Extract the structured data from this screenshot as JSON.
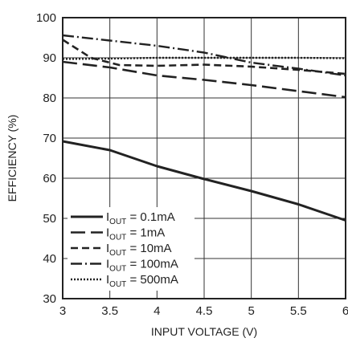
{
  "chart_data": {
    "type": "line",
    "xlabel": "INPUT VOLTAGE (V)",
    "ylabel": "EFFICIENCY (%)",
    "xlim": [
      3,
      6
    ],
    "ylim": [
      30,
      100
    ],
    "xticks": [
      "3",
      "3.5",
      "4",
      "4.5",
      "5",
      "5.5",
      "6"
    ],
    "yticks": [
      "30",
      "40",
      "50",
      "60",
      "70",
      "80",
      "90",
      "100"
    ],
    "grid": true,
    "legend_placement": "bottom-left",
    "series": [
      {
        "label_main": "I",
        "label_sub": "OUT",
        "label_rest": " = 0.1mA",
        "style": "solid",
        "x": [
          3,
          3.5,
          4,
          4.5,
          5,
          5.5,
          6
        ],
        "y": [
          69.2,
          67,
          63,
          59.8,
          56.8,
          53.5,
          49.5
        ]
      },
      {
        "label_main": "I",
        "label_sub": "OUT",
        "label_rest": " = 1mA",
        "style": "long-dash",
        "x": [
          3,
          3.5,
          4,
          4.5,
          5,
          5.5,
          6
        ],
        "y": [
          89,
          87.6,
          85.6,
          84.5,
          83.2,
          81.7,
          80.2
        ]
      },
      {
        "label_main": "I",
        "label_sub": "OUT",
        "label_rest": " = 10mA",
        "style": "dash",
        "x": [
          3,
          3.3,
          3.6,
          4,
          4.5,
          5,
          5.5,
          6
        ],
        "y": [
          94.5,
          90,
          88.2,
          88,
          88.3,
          87.8,
          87,
          86
        ]
      },
      {
        "label_main": "I",
        "label_sub": "OUT",
        "label_rest": " = 100mA",
        "style": "dash-dot",
        "x": [
          3,
          3.5,
          4,
          4.5,
          5,
          5.5,
          6
        ],
        "y": [
          95.6,
          94.3,
          93,
          91.3,
          88.8,
          87.3,
          85.6
        ]
      },
      {
        "label_main": "I",
        "label_sub": "OUT",
        "label_rest": " = 500mA",
        "style": "dotted",
        "x": [
          3,
          3.5,
          4,
          4.5,
          5,
          5.5,
          6
        ],
        "y": [
          89.7,
          89.8,
          90,
          90,
          90,
          90,
          89.9
        ]
      }
    ]
  }
}
